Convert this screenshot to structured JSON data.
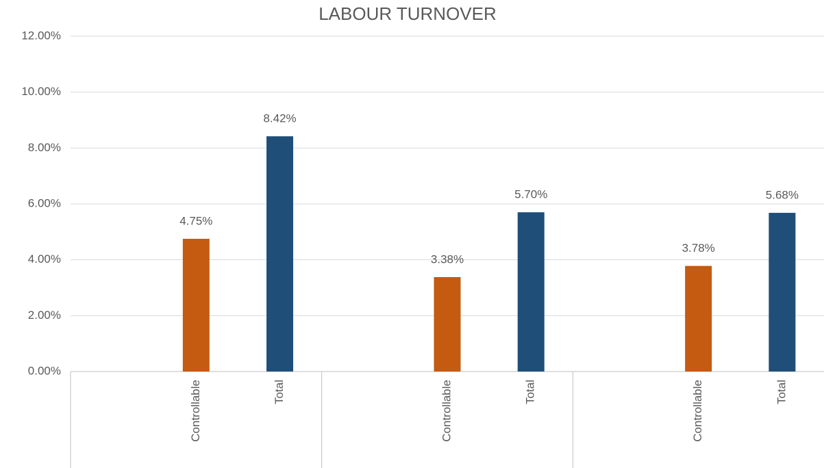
{
  "chart_data": {
    "type": "bar",
    "title": "LABOUR TURNOVER",
    "categories": [
      null,
      "Controllable",
      "Total",
      null,
      "Controllable",
      "Total",
      null,
      "Controllable",
      "Total"
    ],
    "values": [
      null,
      4.75,
      8.42,
      null,
      3.38,
      5.7,
      null,
      3.78,
      5.68
    ],
    "value_labels": [
      null,
      "4.75%",
      "8.42%",
      null,
      "3.38%",
      "5.70%",
      null,
      "3.78%",
      "5.68%"
    ],
    "colors": [
      null,
      "#c55a11",
      "#1f4e79",
      null,
      "#c55a11",
      "#1f4e79",
      null,
      "#c55a11",
      "#1f4e79"
    ],
    "ylim": [
      0,
      12
    ],
    "yticks": [
      {
        "value": 0,
        "label": "0.00%"
      },
      {
        "value": 2,
        "label": "2.00%"
      },
      {
        "value": 4,
        "label": "4.00%"
      },
      {
        "value": 6,
        "label": "6.00%"
      },
      {
        "value": 8,
        "label": "8.00%"
      },
      {
        "value": 10,
        "label": "10.00%"
      },
      {
        "value": 12,
        "label": "12.00%"
      }
    ],
    "grid": true
  }
}
